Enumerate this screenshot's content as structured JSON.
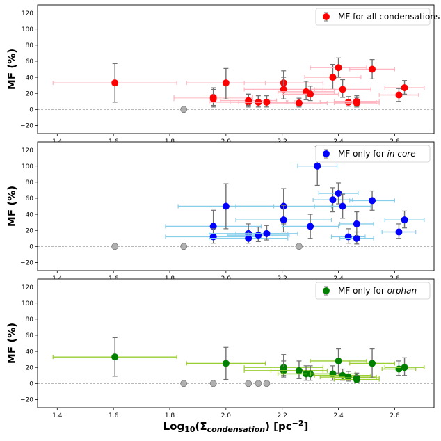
{
  "figure": {
    "xlabel": "Log₁₀(Σcondensation) [pc⁻²]",
    "xlabel_parts": {
      "prefix": "Log",
      "sub10": "10",
      "open": "(Σ",
      "sub": "condensation",
      "close": ") [pc",
      "sup": "−2",
      "end": "]"
    },
    "colors": {
      "zero_marker": "#b0b0b0",
      "errorbar_y": "#707070",
      "zero_line": "#a0a0a0"
    }
  },
  "chart_data": [
    {
      "type": "scatter",
      "title": "",
      "ylabel": "MF (%)",
      "xlim": [
        1.33,
        2.74
      ],
      "ylim": [
        -30,
        130
      ],
      "xticks": [
        "1.4",
        "1.6",
        "1.8",
        "2.0",
        "2.2",
        "2.4",
        "2.6"
      ],
      "yticks": [
        "−20",
        "0",
        "20",
        "40",
        "60",
        "80",
        "100",
        "120"
      ],
      "legend": {
        "label": "MF for all condensations",
        "italic": "",
        "location": "top-right"
      },
      "marker_color": "#ff0000",
      "xerr_color": "#ffb6c1",
      "points": [
        {
          "x": 1.605,
          "y": 33,
          "yerr": [
            24,
            24
          ],
          "xerr": [
            0.22,
            0.22
          ]
        },
        {
          "x": 1.955,
          "y": 15,
          "yerr": [
            10,
            12
          ],
          "xerr": [
            0.14,
            0.14
          ]
        },
        {
          "x": 1.955,
          "y": 13,
          "yerr": [
            10,
            12
          ],
          "xerr": [
            0.14,
            0.14
          ]
        },
        {
          "x": 2.0,
          "y": 33,
          "yerr": [
            20,
            18
          ],
          "xerr": [
            0.14,
            0.14
          ]
        },
        {
          "x": 2.08,
          "y": 9,
          "yerr": [
            6,
            10
          ],
          "xerr": [
            0.14,
            0.14
          ]
        },
        {
          "x": 2.08,
          "y": 11,
          "yerr": [
            6,
            8
          ],
          "xerr": [
            0.1,
            0.1
          ]
        },
        {
          "x": 2.115,
          "y": 9,
          "yerr": [
            6,
            8
          ],
          "xerr": [
            0.1,
            0.1
          ]
        },
        {
          "x": 2.145,
          "y": 9,
          "yerr": [
            6,
            8
          ],
          "xerr": [
            0.1,
            0.1
          ]
        },
        {
          "x": 2.205,
          "y": 33,
          "yerr": [
            20,
            15
          ],
          "xerr": [
            0.14,
            0.14
          ]
        },
        {
          "x": 2.205,
          "y": 25,
          "yerr": [
            12,
            15
          ],
          "xerr": [
            0.14,
            0.14
          ]
        },
        {
          "x": 2.26,
          "y": 8,
          "yerr": [
            5,
            6
          ],
          "xerr": [
            0.1,
            0.1
          ]
        },
        {
          "x": 2.285,
          "y": 22,
          "yerr": [
            10,
            13
          ],
          "xerr": [
            0.1,
            0.1
          ]
        },
        {
          "x": 2.3,
          "y": 19,
          "yerr": [
            8,
            10
          ],
          "xerr": [
            0.1,
            0.1
          ]
        },
        {
          "x": 2.38,
          "y": 40,
          "yerr": [
            15,
            16
          ],
          "xerr": [
            0.1,
            0.1
          ]
        },
        {
          "x": 2.4,
          "y": 52,
          "yerr": [
            12,
            12
          ],
          "xerr": [
            0.1,
            0.1
          ]
        },
        {
          "x": 2.415,
          "y": 25,
          "yerr": [
            10,
            12
          ],
          "xerr": [
            0.1,
            0.1
          ]
        },
        {
          "x": 2.435,
          "y": 9,
          "yerr": [
            5,
            7
          ],
          "xerr": [
            0.1,
            0.1
          ]
        },
        {
          "x": 2.465,
          "y": 10,
          "yerr": [
            5,
            7
          ],
          "xerr": [
            0.08,
            0.08
          ]
        },
        {
          "x": 2.465,
          "y": 8,
          "yerr": [
            5,
            7
          ],
          "xerr": [
            0.08,
            0.08
          ]
        },
        {
          "x": 2.52,
          "y": 50,
          "yerr": [
            12,
            12
          ],
          "xerr": [
            0.08,
            0.08
          ]
        },
        {
          "x": 2.615,
          "y": 18,
          "yerr": [
            8,
            8
          ],
          "xerr": [
            0.07,
            0.07
          ]
        },
        {
          "x": 2.635,
          "y": 27,
          "yerr": [
            8,
            9
          ],
          "xerr": [
            0.07,
            0.07
          ]
        }
      ],
      "zero_points": [
        1.85
      ]
    },
    {
      "type": "scatter",
      "title": "",
      "ylabel": "MF (%)",
      "xlim": [
        1.33,
        2.74
      ],
      "ylim": [
        -30,
        130
      ],
      "xticks": [
        "1.4",
        "1.6",
        "1.8",
        "2.0",
        "2.2",
        "2.4",
        "2.6"
      ],
      "yticks": [
        "−20",
        "0",
        "20",
        "40",
        "60",
        "80",
        "100",
        "120"
      ],
      "legend": {
        "label": "MF only for ",
        "italic": "in core",
        "location": "top-right"
      },
      "marker_color": "#0000ff",
      "xerr_color": "#87ceeb",
      "points": [
        {
          "x": 1.955,
          "y": 25,
          "yerr": [
            15,
            20
          ],
          "xerr": [
            0.17,
            0.17
          ]
        },
        {
          "x": 1.955,
          "y": 12,
          "yerr": [
            8,
            10
          ],
          "xerr": [
            0.17,
            0.17
          ]
        },
        {
          "x": 2.0,
          "y": 50,
          "yerr": [
            28,
            28
          ],
          "xerr": [
            0.17,
            0.17
          ]
        },
        {
          "x": 2.08,
          "y": 16,
          "yerr": [
            8,
            12
          ],
          "xerr": [
            0.14,
            0.14
          ]
        },
        {
          "x": 2.08,
          "y": 10,
          "yerr": [
            6,
            8
          ],
          "xerr": [
            0.14,
            0.14
          ]
        },
        {
          "x": 2.115,
          "y": 14,
          "yerr": [
            8,
            10
          ],
          "xerr": [
            0.11,
            0.11
          ]
        },
        {
          "x": 2.145,
          "y": 16,
          "yerr": [
            8,
            10
          ],
          "xerr": [
            0.11,
            0.11
          ]
        },
        {
          "x": 2.205,
          "y": 50,
          "yerr": [
            22,
            22
          ],
          "xerr": [
            0.17,
            0.17
          ]
        },
        {
          "x": 2.205,
          "y": 33,
          "yerr": [
            15,
            18
          ],
          "xerr": [
            0.17,
            0.17
          ]
        },
        {
          "x": 2.3,
          "y": 25,
          "yerr": [
            15,
            15
          ],
          "xerr": [
            0.1,
            0.1
          ]
        },
        {
          "x": 2.325,
          "y": 100,
          "yerr": [
            24,
            24
          ],
          "xerr": [
            0.07,
            0.07
          ]
        },
        {
          "x": 2.38,
          "y": 58,
          "yerr": [
            15,
            15
          ],
          "xerr": [
            0.07,
            0.07
          ]
        },
        {
          "x": 2.4,
          "y": 66,
          "yerr": [
            13,
            13
          ],
          "xerr": [
            0.07,
            0.07
          ]
        },
        {
          "x": 2.415,
          "y": 50,
          "yerr": [
            15,
            15
          ],
          "xerr": [
            0.1,
            0.1
          ]
        },
        {
          "x": 2.435,
          "y": 12,
          "yerr": [
            8,
            10
          ],
          "xerr": [
            0.06,
            0.06
          ]
        },
        {
          "x": 2.465,
          "y": 10,
          "yerr": [
            7,
            8
          ],
          "xerr": [
            0.06,
            0.06
          ]
        },
        {
          "x": 2.465,
          "y": 28,
          "yerr": [
            15,
            15
          ],
          "xerr": [
            0.06,
            0.06
          ]
        },
        {
          "x": 2.52,
          "y": 57,
          "yerr": [
            12,
            12
          ],
          "xerr": [
            0.08,
            0.08
          ]
        },
        {
          "x": 2.615,
          "y": 18,
          "yerr": [
            8,
            10
          ],
          "xerr": [
            0.06,
            0.06
          ]
        },
        {
          "x": 2.635,
          "y": 33,
          "yerr": [
            10,
            11
          ],
          "xerr": [
            0.07,
            0.07
          ]
        }
      ],
      "zero_points": [
        1.605,
        1.85,
        2.26
      ]
    },
    {
      "type": "scatter",
      "title": "",
      "ylabel": "MF (%)",
      "xlim": [
        1.33,
        2.74
      ],
      "ylim": [
        -30,
        130
      ],
      "xticks": [
        "1.4",
        "1.6",
        "1.8",
        "2.0",
        "2.2",
        "2.4",
        "2.6"
      ],
      "yticks": [
        "−20",
        "0",
        "20",
        "40",
        "60",
        "80",
        "100",
        "120"
      ],
      "legend": {
        "label": "MF only for ",
        "italic": "orphan",
        "location": "top-right"
      },
      "marker_color": "#008000",
      "xerr_color": "#9acd32",
      "points": [
        {
          "x": 1.605,
          "y": 33,
          "yerr": [
            24,
            24
          ],
          "xerr": [
            0.22,
            0.22
          ]
        },
        {
          "x": 2.0,
          "y": 25,
          "yerr": [
            20,
            20
          ],
          "xerr": [
            0.14,
            0.14
          ]
        },
        {
          "x": 2.205,
          "y": 20,
          "yerr": [
            10,
            16
          ],
          "xerr": [
            0.14,
            0.14
          ]
        },
        {
          "x": 2.205,
          "y": 16,
          "yerr": [
            8,
            12
          ],
          "xerr": [
            0.14,
            0.14
          ]
        },
        {
          "x": 2.26,
          "y": 16,
          "yerr": [
            10,
            12
          ],
          "xerr": [
            0.1,
            0.1
          ]
        },
        {
          "x": 2.285,
          "y": 12,
          "yerr": [
            8,
            10
          ],
          "xerr": [
            0.1,
            0.1
          ]
        },
        {
          "x": 2.3,
          "y": 12,
          "yerr": [
            8,
            10
          ],
          "xerr": [
            0.1,
            0.1
          ]
        },
        {
          "x": 2.38,
          "y": 12,
          "yerr": [
            8,
            10
          ],
          "xerr": [
            0.08,
            0.08
          ]
        },
        {
          "x": 2.4,
          "y": 28,
          "yerr": [
            15,
            15
          ],
          "xerr": [
            0.1,
            0.1
          ]
        },
        {
          "x": 2.415,
          "y": 10,
          "yerr": [
            6,
            8
          ],
          "xerr": [
            0.1,
            0.1
          ]
        },
        {
          "x": 2.435,
          "y": 8,
          "yerr": [
            5,
            7
          ],
          "xerr": [
            0.1,
            0.1
          ]
        },
        {
          "x": 2.465,
          "y": 7,
          "yerr": [
            5,
            6
          ],
          "xerr": [
            0.08,
            0.08
          ]
        },
        {
          "x": 2.465,
          "y": 5,
          "yerr": [
            4,
            5
          ],
          "xerr": [
            0.08,
            0.08
          ]
        },
        {
          "x": 2.52,
          "y": 25,
          "yerr": [
            18,
            18
          ],
          "xerr": [
            0.08,
            0.08
          ]
        },
        {
          "x": 2.615,
          "y": 18,
          "yerr": [
            8,
            10
          ],
          "xerr": [
            0.06,
            0.06
          ]
        },
        {
          "x": 2.635,
          "y": 20,
          "yerr": [
            10,
            12
          ],
          "xerr": [
            0.07,
            0.07
          ]
        }
      ],
      "zero_points": [
        1.85,
        1.955,
        2.08,
        2.115,
        2.145
      ]
    }
  ]
}
